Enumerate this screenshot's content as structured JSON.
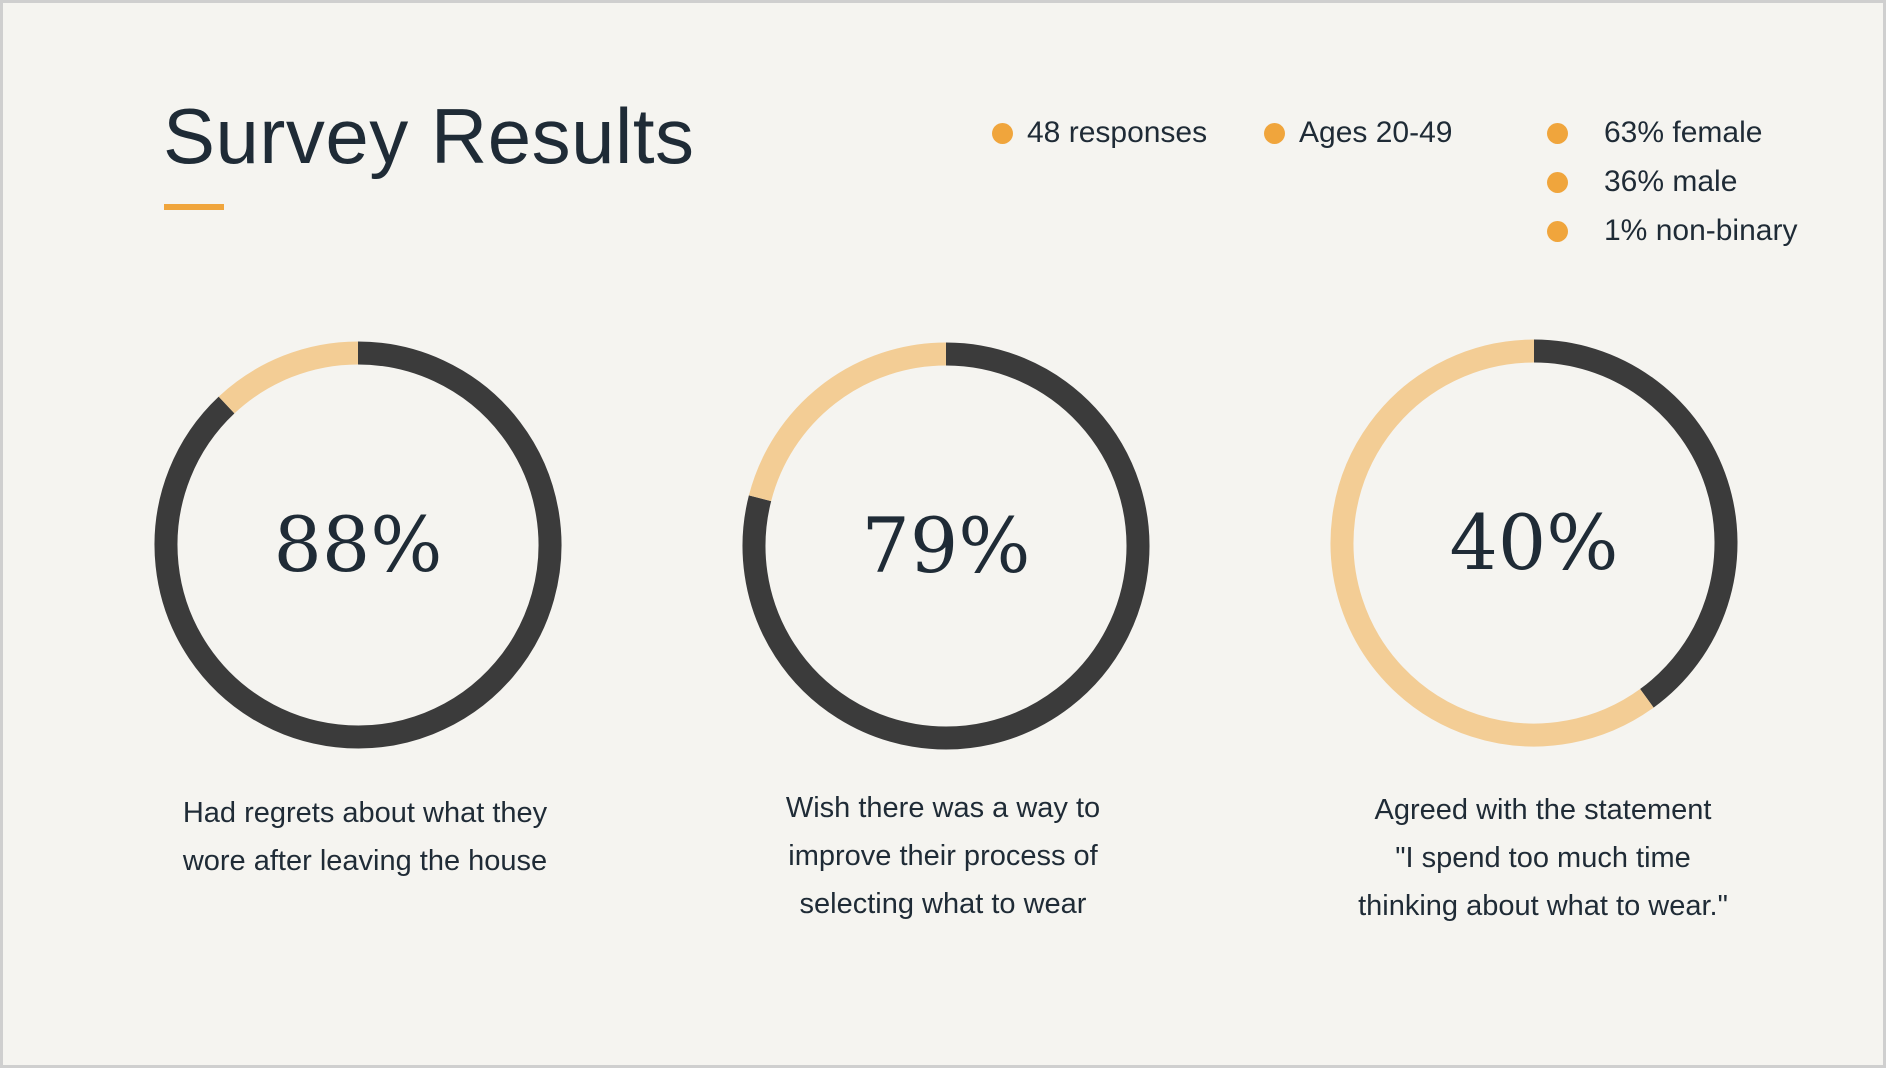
{
  "title": "Survey Results",
  "colors": {
    "accent": "#f0a53c",
    "ring_dark": "#3b3b3b",
    "ring_light": "#f3cd95"
  },
  "stats": [
    {
      "label": "48 responses"
    },
    {
      "label": "Ages 20-49"
    },
    {
      "label": "63% female"
    },
    {
      "label": "36% male"
    },
    {
      "label": "1% non-binary"
    }
  ],
  "chart_data": [
    {
      "type": "pie",
      "values": [
        88,
        12
      ],
      "label": "88%",
      "caption_lines": [
        "Had regrets about what they",
        "wore after leaving the house"
      ]
    },
    {
      "type": "pie",
      "values": [
        79,
        21
      ],
      "label": "79%",
      "caption_lines": [
        "Wish there was a way to",
        "improve their process of",
        "selecting what to wear"
      ]
    },
    {
      "type": "pie",
      "values": [
        40,
        60
      ],
      "label": "40%",
      "caption_lines": [
        "Agreed with the statement",
        "\"I spend too much time",
        "thinking about what to wear.\""
      ]
    }
  ]
}
